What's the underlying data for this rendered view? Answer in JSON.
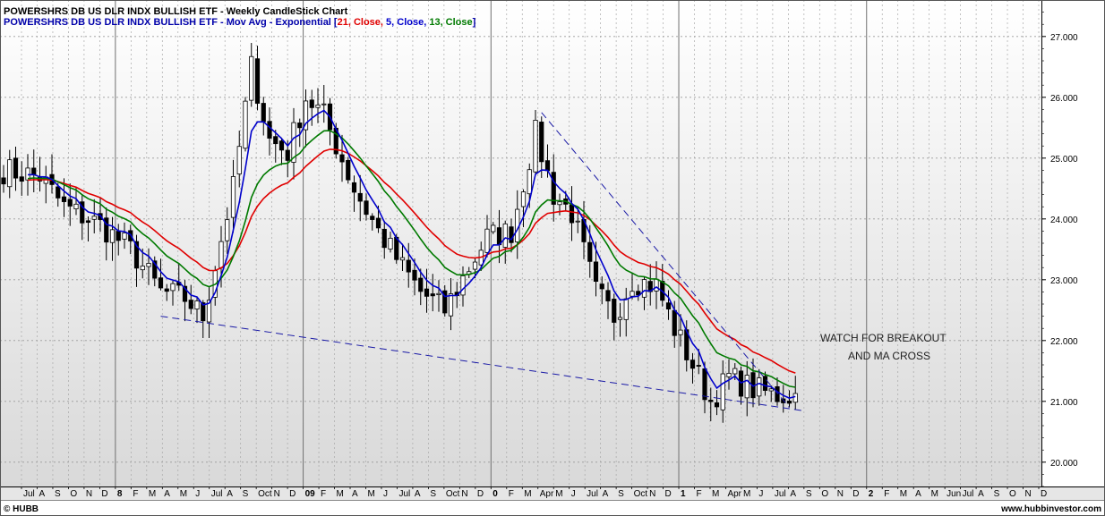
{
  "header": {
    "line1": "POWERSHRS DB US DLR INDX BULLISH ETF - Weekly CandleStick Chart",
    "line2_prefix": "POWERSHRS DB US DLR INDX BULLISH ETF - Mov Avg - Exponential [",
    "ma1_label": "21, Close,",
    "ma2_label": "5, Close,",
    "ma3_label": "13, Close",
    "line2_suffix": "]"
  },
  "footer": {
    "ticker": "© HUBB",
    "site": "www.hubbinvestor.com"
  },
  "annotation": {
    "line1": "WATCH FOR BREAKOUT",
    "line2": "AND MA CROSS"
  },
  "colors": {
    "ma21": "#e00000",
    "ma5": "#0000cc",
    "ma13": "#007a00",
    "candle": "#000000",
    "trendline": "#1a1aa6"
  },
  "chart_data": {
    "type": "candlestick",
    "title": "POWERSHRS DB US DLR INDX BULLISH ETF - Weekly CandleStick Chart",
    "ylim": [
      19.6,
      27.6
    ],
    "y_ticks": [
      20.0,
      21.0,
      22.0,
      23.0,
      24.0,
      25.0,
      26.0,
      27.0
    ],
    "x_ticks": [
      "Jul",
      "A",
      "S",
      "O",
      "N",
      "D",
      "8",
      "F",
      "M",
      "A",
      "M",
      "J",
      "Jul",
      "A",
      "S",
      "Oct",
      "N",
      "D",
      "09",
      "F",
      "M",
      "A",
      "M",
      "J",
      "Jul",
      "A",
      "S",
      "Oct",
      "N",
      "D",
      "0",
      "F",
      "M",
      "Apr",
      "M",
      "J",
      "Jul",
      "A",
      "S",
      "Oct",
      "N",
      "D",
      "1",
      "F",
      "M",
      "Apr",
      "M",
      "J",
      "Jul",
      "A",
      "S",
      "O",
      "N",
      "D",
      "2",
      "F",
      "M",
      "A",
      "M",
      "Jun",
      "Jul",
      "A",
      "S",
      "O",
      "N",
      "D"
    ],
    "bold_ticks": [
      "8",
      "09",
      "0",
      "1",
      "2"
    ],
    "moving_averages": [
      "EMA 21 Close",
      "EMA 5 Close",
      "EMA 13 Close"
    ],
    "series_close_keypoints": [
      [
        0,
        24.8
      ],
      [
        6,
        24.7
      ],
      [
        10,
        24.2
      ],
      [
        16,
        23.9
      ],
      [
        21,
        23.5
      ],
      [
        26,
        22.8
      ],
      [
        30,
        22.7
      ],
      [
        33,
        22.4
      ],
      [
        38,
        24.5
      ],
      [
        41,
        26.5
      ],
      [
        44,
        25.3
      ],
      [
        47,
        25.1
      ],
      [
        50,
        26.0
      ],
      [
        53,
        25.7
      ],
      [
        58,
        24.5
      ],
      [
        62,
        23.8
      ],
      [
        66,
        23.2
      ],
      [
        69,
        22.8
      ],
      [
        73,
        22.5
      ],
      [
        77,
        23.2
      ],
      [
        80,
        23.7
      ],
      [
        84,
        23.8
      ],
      [
        88,
        25.4
      ],
      [
        91,
        24.4
      ],
      [
        94,
        24.1
      ],
      [
        98,
        22.8
      ],
      [
        101,
        22.4
      ],
      [
        104,
        23.0
      ],
      [
        108,
        22.9
      ],
      [
        111,
        22.2
      ],
      [
        114,
        21.6
      ],
      [
        117,
        21.0
      ],
      [
        120,
        21.4
      ],
      [
        124,
        21.2
      ],
      [
        128,
        21.1
      ]
    ],
    "trendlines": [
      {
        "name": "upper",
        "from": [
          89,
          25.75
        ],
        "to": [
          130,
          20.9
        ]
      },
      {
        "name": "lower",
        "from": [
          26,
          22.4
        ],
        "to": [
          132,
          20.85
        ]
      }
    ]
  }
}
